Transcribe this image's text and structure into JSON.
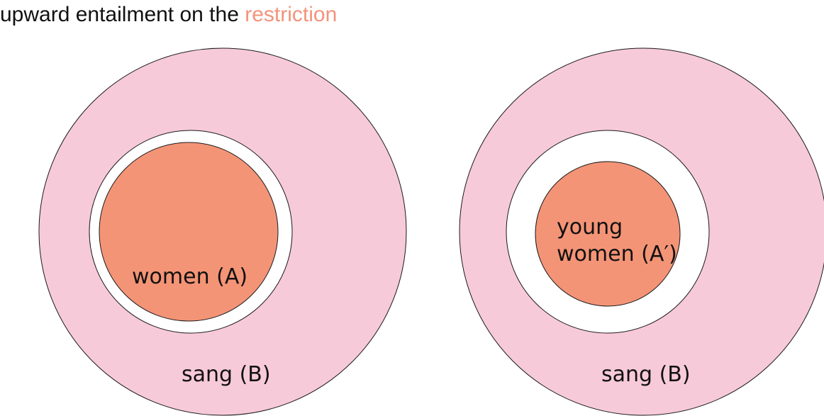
{
  "title": {
    "prefix": "upward entailment on the ",
    "highlight": "restriction"
  },
  "colors": {
    "outer_fill": "#f7cad9",
    "middle_fill": "#ffffff",
    "inner_fill": "#f49476",
    "stroke": "#1a1a1a",
    "accent": "#f4937c",
    "text": "#111111"
  },
  "left_diagram": {
    "inner_label": "women (A)",
    "outer_label": "sang (B)"
  },
  "right_diagram": {
    "inner_label_line1": "young",
    "inner_label_line2": "women (A′)",
    "outer_label": "sang (B)"
  }
}
